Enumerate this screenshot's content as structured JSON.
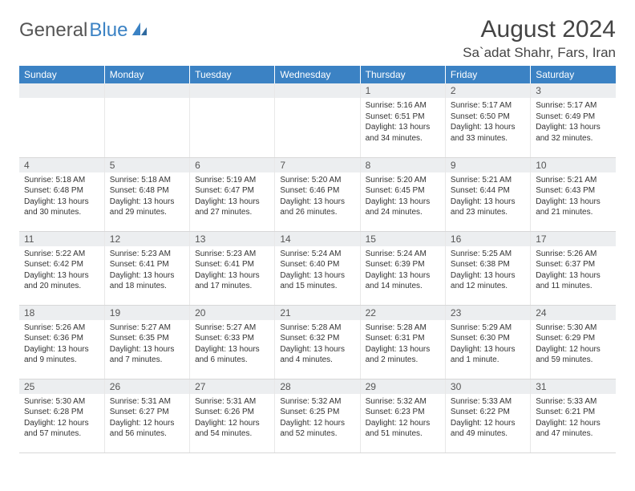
{
  "logo": {
    "text_general": "General",
    "text_blue": "Blue"
  },
  "header": {
    "month_title": "August 2024",
    "location": "Sa`adat Shahr, Fars, Iran"
  },
  "styling": {
    "header_bg": "#3b82c4",
    "header_text": "#ffffff",
    "daybar_bg": "#eceef0",
    "border_color": "#d8d8d8",
    "body_text": "#333333",
    "title_fontsize": 30,
    "location_fontsize": 17,
    "weekday_fontsize": 12,
    "daynum_fontsize": 12,
    "cell_fontsize": 10
  },
  "weekdays": [
    "Sunday",
    "Monday",
    "Tuesday",
    "Wednesday",
    "Thursday",
    "Friday",
    "Saturday"
  ],
  "weeks": [
    [
      null,
      null,
      null,
      null,
      {
        "n": "1",
        "sr": "5:16 AM",
        "ss": "6:51 PM",
        "dl": "13 hours and 34 minutes."
      },
      {
        "n": "2",
        "sr": "5:17 AM",
        "ss": "6:50 PM",
        "dl": "13 hours and 33 minutes."
      },
      {
        "n": "3",
        "sr": "5:17 AM",
        "ss": "6:49 PM",
        "dl": "13 hours and 32 minutes."
      }
    ],
    [
      {
        "n": "4",
        "sr": "5:18 AM",
        "ss": "6:48 PM",
        "dl": "13 hours and 30 minutes."
      },
      {
        "n": "5",
        "sr": "5:18 AM",
        "ss": "6:48 PM",
        "dl": "13 hours and 29 minutes."
      },
      {
        "n": "6",
        "sr": "5:19 AM",
        "ss": "6:47 PM",
        "dl": "13 hours and 27 minutes."
      },
      {
        "n": "7",
        "sr": "5:20 AM",
        "ss": "6:46 PM",
        "dl": "13 hours and 26 minutes."
      },
      {
        "n": "8",
        "sr": "5:20 AM",
        "ss": "6:45 PM",
        "dl": "13 hours and 24 minutes."
      },
      {
        "n": "9",
        "sr": "5:21 AM",
        "ss": "6:44 PM",
        "dl": "13 hours and 23 minutes."
      },
      {
        "n": "10",
        "sr": "5:21 AM",
        "ss": "6:43 PM",
        "dl": "13 hours and 21 minutes."
      }
    ],
    [
      {
        "n": "11",
        "sr": "5:22 AM",
        "ss": "6:42 PM",
        "dl": "13 hours and 20 minutes."
      },
      {
        "n": "12",
        "sr": "5:23 AM",
        "ss": "6:41 PM",
        "dl": "13 hours and 18 minutes."
      },
      {
        "n": "13",
        "sr": "5:23 AM",
        "ss": "6:41 PM",
        "dl": "13 hours and 17 minutes."
      },
      {
        "n": "14",
        "sr": "5:24 AM",
        "ss": "6:40 PM",
        "dl": "13 hours and 15 minutes."
      },
      {
        "n": "15",
        "sr": "5:24 AM",
        "ss": "6:39 PM",
        "dl": "13 hours and 14 minutes."
      },
      {
        "n": "16",
        "sr": "5:25 AM",
        "ss": "6:38 PM",
        "dl": "13 hours and 12 minutes."
      },
      {
        "n": "17",
        "sr": "5:26 AM",
        "ss": "6:37 PM",
        "dl": "13 hours and 11 minutes."
      }
    ],
    [
      {
        "n": "18",
        "sr": "5:26 AM",
        "ss": "6:36 PM",
        "dl": "13 hours and 9 minutes."
      },
      {
        "n": "19",
        "sr": "5:27 AM",
        "ss": "6:35 PM",
        "dl": "13 hours and 7 minutes."
      },
      {
        "n": "20",
        "sr": "5:27 AM",
        "ss": "6:33 PM",
        "dl": "13 hours and 6 minutes."
      },
      {
        "n": "21",
        "sr": "5:28 AM",
        "ss": "6:32 PM",
        "dl": "13 hours and 4 minutes."
      },
      {
        "n": "22",
        "sr": "5:28 AM",
        "ss": "6:31 PM",
        "dl": "13 hours and 2 minutes."
      },
      {
        "n": "23",
        "sr": "5:29 AM",
        "ss": "6:30 PM",
        "dl": "13 hours and 1 minute."
      },
      {
        "n": "24",
        "sr": "5:30 AM",
        "ss": "6:29 PM",
        "dl": "12 hours and 59 minutes."
      }
    ],
    [
      {
        "n": "25",
        "sr": "5:30 AM",
        "ss": "6:28 PM",
        "dl": "12 hours and 57 minutes."
      },
      {
        "n": "26",
        "sr": "5:31 AM",
        "ss": "6:27 PM",
        "dl": "12 hours and 56 minutes."
      },
      {
        "n": "27",
        "sr": "5:31 AM",
        "ss": "6:26 PM",
        "dl": "12 hours and 54 minutes."
      },
      {
        "n": "28",
        "sr": "5:32 AM",
        "ss": "6:25 PM",
        "dl": "12 hours and 52 minutes."
      },
      {
        "n": "29",
        "sr": "5:32 AM",
        "ss": "6:23 PM",
        "dl": "12 hours and 51 minutes."
      },
      {
        "n": "30",
        "sr": "5:33 AM",
        "ss": "6:22 PM",
        "dl": "12 hours and 49 minutes."
      },
      {
        "n": "31",
        "sr": "5:33 AM",
        "ss": "6:21 PM",
        "dl": "12 hours and 47 minutes."
      }
    ]
  ],
  "labels": {
    "sunrise": "Sunrise:",
    "sunset": "Sunset:",
    "daylight": "Daylight:"
  }
}
